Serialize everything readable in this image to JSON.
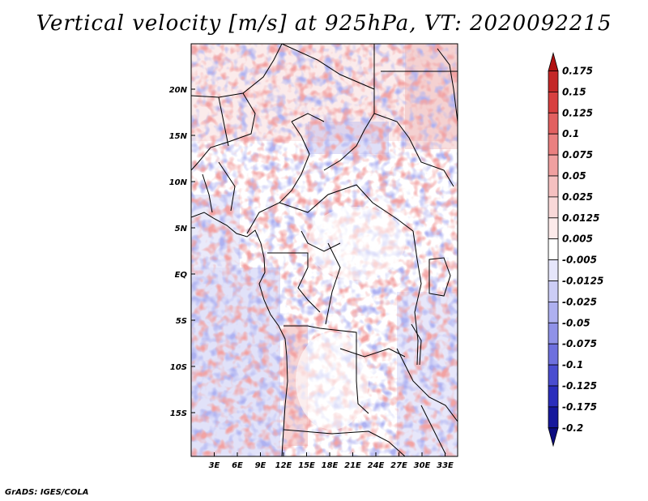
{
  "title": "Vertical velocity [m/s] at 925hPa, VT: 2020092215",
  "credit": "GrADS: IGES/COLA",
  "map": {
    "lat_labels": [
      "20N",
      "15N",
      "10N",
      "5N",
      "EQ",
      "5S",
      "10S",
      "15S"
    ],
    "lon_labels": [
      "3E",
      "6E",
      "9E",
      "12E",
      "15E",
      "18E",
      "21E",
      "24E",
      "27E",
      "30E",
      "33E"
    ]
  },
  "colorbar": {
    "levels": [
      "0.175",
      "0.15",
      "0.125",
      "0.1",
      "0.075",
      "0.05",
      "0.025",
      "0.0125",
      "0.005",
      "-0.005",
      "-0.0125",
      "-0.025",
      "-0.05",
      "-0.075",
      "-0.1",
      "-0.125",
      "-0.175",
      "-0.2"
    ],
    "colors": [
      "#b01010",
      "#c42828",
      "#d84040",
      "#e26060",
      "#ea8080",
      "#f0a0a0",
      "#f5c0c0",
      "#f9d8d8",
      "#fceaea",
      "#ffffff",
      "#e6e6fb",
      "#cccdf6",
      "#aeb0f0",
      "#9092e8",
      "#6e70de",
      "#4a4dd0",
      "#2b2ebc",
      "#16189c",
      "#0c0c80"
    ]
  }
}
